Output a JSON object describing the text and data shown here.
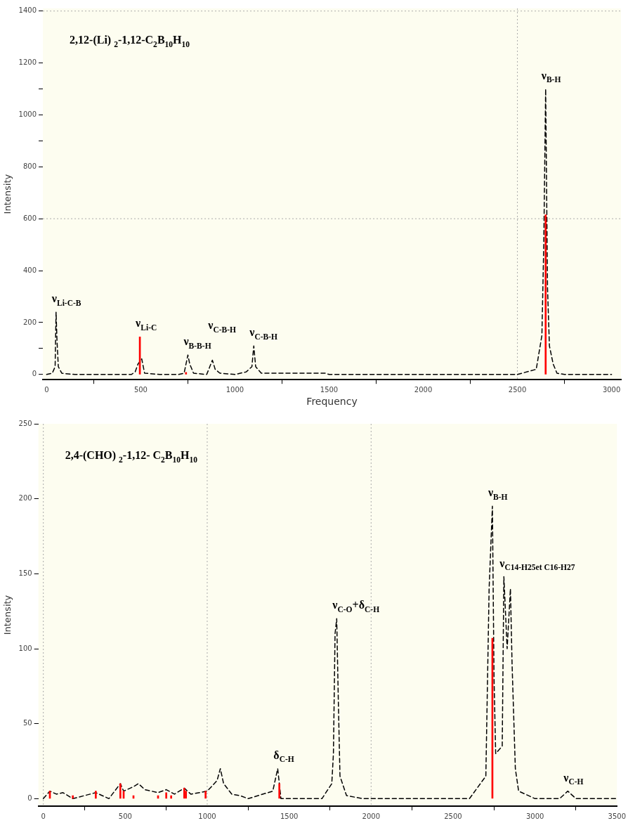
{
  "chart_data": [
    {
      "type": "line",
      "title": "2,12-(Li) $_{2}$-1,12-C$_{2}$B$_{10}$H$_{10}$",
      "xlabel": "Frequency",
      "ylabel": "Intensity",
      "xlim": [
        -20,
        3050
      ],
      "ylim": [
        -20,
        1410
      ],
      "xticks": [
        0,
        500,
        1000,
        1500,
        2000,
        2500,
        3000
      ],
      "yticks": [
        0,
        {
          "value": 100,
          "label": null
        },
        200,
        400,
        600,
        800,
        {
          "value": 900,
          "label": null
        },
        1000,
        {
          "value": 1100,
          "label": null
        },
        1200,
        1400
      ],
      "grid": false,
      "legend": false,
      "marker": "none",
      "ref_lines": [
        {
          "axis": "x",
          "value": 2500,
          "color": "#aaaaaa",
          "line_style": "dotted"
        },
        {
          "axis": "y",
          "value": 600,
          "color": "#aaaaaa",
          "line_style": "dotted"
        },
        {
          "axis": "y",
          "value": 1400,
          "color": "#aaaaaa",
          "line_style": "dotted"
        }
      ],
      "series": [
        {
          "color": "#000000",
          "line_style": "dashed",
          "x": [
            0,
            30,
            45,
            50,
            55,
            62,
            80,
            100,
            150,
            450,
            470,
            485,
            505,
            520,
            600,
            700,
            730,
            750,
            760,
            780,
            850,
            880,
            895,
            920,
            1000,
            1060,
            1090,
            1100,
            1110,
            1140,
            1200,
            1480,
            1500,
            2450,
            2500,
            2600,
            2630,
            2640,
            2650,
            2660,
            2670,
            2690,
            2710,
            2750,
            3000
          ],
          "values": [
            0,
            5,
            30,
            240,
            130,
            30,
            5,
            3,
            0,
            0,
            10,
            40,
            60,
            5,
            0,
            0,
            5,
            75,
            40,
            5,
            0,
            55,
            20,
            5,
            0,
            10,
            30,
            110,
            30,
            5,
            5,
            5,
            0,
            0,
            0,
            20,
            150,
            500,
            1100,
            330,
            110,
            40,
            5,
            0,
            0
          ]
        },
        {
          "type": "bar",
          "color": "#ff0000",
          "x": [
            495,
            740,
            2650
          ],
          "values": [
            145,
            8,
            615
          ]
        }
      ],
      "annotations": [
        {
          "text": "ν$_{Li-C-B}$",
          "x": 50,
          "y": 240
        },
        {
          "text": "ν$_{Li-C}$",
          "x": 495,
          "y": 145
        },
        {
          "text": "ν$_{B-B-H}$",
          "x": 750,
          "y": 75
        },
        {
          "text": "ν$_{C-B-H}$",
          "x": 880,
          "y": 55
        },
        {
          "text": "ν$_{C-B-H}$",
          "x": 1100,
          "y": 110
        },
        {
          "text": "ν$_{B-H}$",
          "x": 2650,
          "y": 1100
        }
      ]
    },
    {
      "type": "line",
      "title": "2,4-(CHO) $_{2}$-1,12- C$_{2}$B$_{10}$H$_{10}$",
      "ylabel": "Intensity",
      "xlim": [
        -30,
        3500
      ],
      "ylim": [
        -5,
        250
      ],
      "xticks": [
        0,
        500,
        1000,
        1500,
        2000,
        2500,
        3000,
        3500
      ],
      "yticks": [
        0,
        50,
        100,
        150,
        200,
        250
      ],
      "grid": false,
      "legend": false,
      "marker": "none",
      "ref_lines": [
        {
          "axis": "x",
          "value": 0,
          "color": "#aaaaaa",
          "line_style": "dotted"
        },
        {
          "axis": "x",
          "value": 1000,
          "color": "#aaaaaa",
          "line_style": "dotted"
        },
        {
          "axis": "x",
          "value": 2000,
          "color": "#aaaaaa",
          "line_style": "dotted"
        }
      ],
      "series": [
        {
          "color": "#000000",
          "line_style": "dashed",
          "x": [
            0,
            40,
            80,
            120,
            180,
            250,
            320,
            400,
            470,
            490,
            550,
            580,
            620,
            700,
            750,
            800,
            860,
            900,
            1000,
            1060,
            1080,
            1100,
            1150,
            1200,
            1250,
            1400,
            1430,
            1450,
            1700,
            1760,
            1770,
            1780,
            1790,
            1800,
            1810,
            1850,
            1950,
            2600,
            2700,
            2720,
            2740,
            2750,
            2760,
            2800,
            2810,
            2830,
            2850,
            2860,
            2880,
            2900,
            3000,
            3150,
            3200,
            3250,
            3500
          ],
          "values": [
            0,
            5,
            3,
            4,
            0,
            2,
            4,
            0,
            10,
            5,
            8,
            10,
            6,
            4,
            6,
            3,
            7,
            3,
            5,
            12,
            20,
            10,
            3,
            2,
            0,
            5,
            20,
            0,
            0,
            10,
            30,
            110,
            120,
            65,
            15,
            2,
            0,
            0,
            15,
            140,
            195,
            80,
            30,
            35,
            148,
            100,
            140,
            90,
            20,
            5,
            0,
            0,
            5,
            0,
            0
          ]
        },
        {
          "type": "bar",
          "color": "#ff0000",
          "x": [
            40,
            180,
            320,
            470,
            490,
            550,
            700,
            750,
            780,
            860,
            870,
            990,
            1440,
            2740
          ],
          "values": [
            5,
            2,
            5,
            10,
            5,
            2,
            2,
            4,
            2,
            7,
            5,
            5,
            10,
            107
          ]
        }
      ],
      "annotations": [
        {
          "text": "δ$_{C-H}$",
          "x": 1430,
          "y": 20
        },
        {
          "text": "ν$_{C-O}$+δ$_{C-H}$",
          "x": 1790,
          "y": 120
        },
        {
          "text": "ν$_{B-H}$",
          "x": 2740,
          "y": 195
        },
        {
          "text": "ν$_{C14-H25et C16-H27}$",
          "x": 2810,
          "y": 148
        },
        {
          "text": "ν$_{C-H}$",
          "x": 3200,
          "y": 5
        }
      ]
    }
  ]
}
